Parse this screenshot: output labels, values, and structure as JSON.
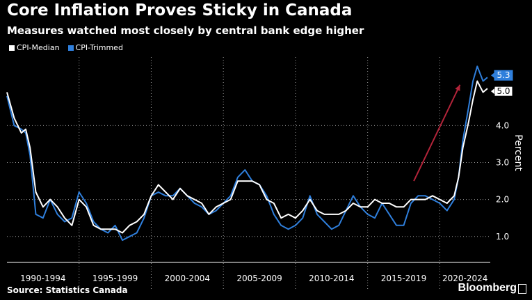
{
  "title": "Core Inflation Proves Sticky in Canada",
  "subtitle": "Measures watched most closely by central bank edge higher",
  "source": "Source: Statistics Canada",
  "brand": "Bloomberg",
  "colors": {
    "background": "#000000",
    "median": "#ffffff",
    "trimmed": "#2f7fdc",
    "arrow": "#b3243a",
    "grid": "#9a9a9a"
  },
  "chart_data": {
    "type": "line",
    "title": "Core Inflation Proves Sticky in Canada",
    "subtitle": "Measures watched most closely by central bank edge higher",
    "ylabel": "Percent",
    "xlabel": "",
    "ylim": [
      0.3,
      5.85
    ],
    "yticks": [
      1.0,
      2.0,
      3.0,
      4.0
    ],
    "ytick_labels": [
      "1.0",
      "2.0",
      "3.0",
      "4.0"
    ],
    "xlim": [
      1990,
      2023.5
    ],
    "categories": [
      "1990-1994",
      "1995-1999",
      "2000-2004",
      "2005-2009",
      "2010-2014",
      "2015-2019",
      "2020-2024"
    ],
    "category_bounds": [
      [
        1990,
        1995
      ],
      [
        1995,
        2000
      ],
      [
        2000,
        2005
      ],
      [
        2005,
        2010
      ],
      [
        2010,
        2015
      ],
      [
        2015,
        2020
      ],
      [
        2020,
        2025
      ]
    ],
    "grid": true,
    "legend_position": "top-left",
    "annotation": "upward arrow pointing to recent surge",
    "series": [
      {
        "name": "CPI-Median",
        "color": "#ffffff",
        "x": [
          1990,
          1990.5,
          1991,
          1991.3,
          1991.6,
          1992,
          1992.5,
          1993,
          1993.5,
          1994,
          1994.5,
          1995,
          1995.5,
          1996,
          1996.5,
          1997,
          1997.5,
          1998,
          1998.5,
          1999,
          1999.5,
          2000,
          2000.5,
          2001,
          2001.5,
          2002,
          2002.5,
          2003,
          2003.5,
          2004,
          2004.5,
          2005,
          2005.5,
          2006,
          2006.5,
          2007,
          2007.5,
          2008,
          2008.5,
          2009,
          2009.5,
          2010,
          2010.5,
          2011,
          2011.5,
          2012,
          2012.5,
          2013,
          2013.5,
          2014,
          2014.5,
          2015,
          2015.5,
          2016,
          2016.5,
          2017,
          2017.5,
          2018,
          2018.5,
          2019,
          2019.5,
          2020,
          2020.5,
          2021,
          2021.3,
          2021.6,
          2022,
          2022.3,
          2022.6,
          2023,
          2023.3
        ],
        "y": [
          4.9,
          4.2,
          3.8,
          3.9,
          3.4,
          2.2,
          1.8,
          2.0,
          1.8,
          1.5,
          1.3,
          2.0,
          1.8,
          1.3,
          1.2,
          1.2,
          1.2,
          1.1,
          1.3,
          1.4,
          1.6,
          2.1,
          2.4,
          2.2,
          2.0,
          2.3,
          2.1,
          2.0,
          1.9,
          1.6,
          1.8,
          1.9,
          2.0,
          2.5,
          2.5,
          2.5,
          2.4,
          2.0,
          1.9,
          1.5,
          1.6,
          1.5,
          1.7,
          2.0,
          1.7,
          1.6,
          1.6,
          1.6,
          1.7,
          1.9,
          1.8,
          1.8,
          2.0,
          1.9,
          1.9,
          1.8,
          1.8,
          2.0,
          2.0,
          2.0,
          2.1,
          2.0,
          1.9,
          2.1,
          2.6,
          3.4,
          4.1,
          4.7,
          5.2,
          4.9,
          5.0
        ]
      },
      {
        "name": "CPI-Trimmed",
        "color": "#2f7fdc",
        "x": [
          1990,
          1990.5,
          1991,
          1991.3,
          1991.6,
          1992,
          1992.5,
          1993,
          1993.5,
          1994,
          1994.5,
          1995,
          1995.5,
          1996,
          1996.5,
          1997,
          1997.5,
          1998,
          1998.5,
          1999,
          1999.5,
          2000,
          2000.5,
          2001,
          2001.5,
          2002,
          2002.5,
          2003,
          2003.5,
          2004,
          2004.5,
          2005,
          2005.5,
          2006,
          2006.5,
          2007,
          2007.5,
          2008,
          2008.5,
          2009,
          2009.5,
          2010,
          2010.5,
          2011,
          2011.5,
          2012,
          2012.5,
          2013,
          2013.5,
          2014,
          2014.5,
          2015,
          2015.5,
          2016,
          2016.5,
          2017,
          2017.5,
          2018,
          2018.5,
          2019,
          2019.5,
          2020,
          2020.5,
          2021,
          2021.3,
          2021.6,
          2022,
          2022.3,
          2022.6,
          2023,
          2023.3
        ],
        "y": [
          4.8,
          4.0,
          3.9,
          3.8,
          3.2,
          1.6,
          1.5,
          2.0,
          1.6,
          1.4,
          1.5,
          2.2,
          1.9,
          1.4,
          1.2,
          1.1,
          1.3,
          0.9,
          1.0,
          1.1,
          1.5,
          2.1,
          2.2,
          2.1,
          2.1,
          2.3,
          2.1,
          1.9,
          1.8,
          1.6,
          1.7,
          1.9,
          2.1,
          2.6,
          2.8,
          2.5,
          2.4,
          2.1,
          1.6,
          1.3,
          1.2,
          1.3,
          1.5,
          2.1,
          1.6,
          1.4,
          1.2,
          1.3,
          1.7,
          2.1,
          1.8,
          1.6,
          1.5,
          1.9,
          1.6,
          1.3,
          1.3,
          1.9,
          2.1,
          2.1,
          2.0,
          1.9,
          1.7,
          2.0,
          2.6,
          3.6,
          4.5,
          5.2,
          5.6,
          5.2,
          5.3
        ]
      }
    ],
    "end_labels": [
      {
        "series": "CPI-Trimmed",
        "text": "5.3"
      },
      {
        "series": "CPI-Median",
        "text": "5.0"
      }
    ]
  }
}
